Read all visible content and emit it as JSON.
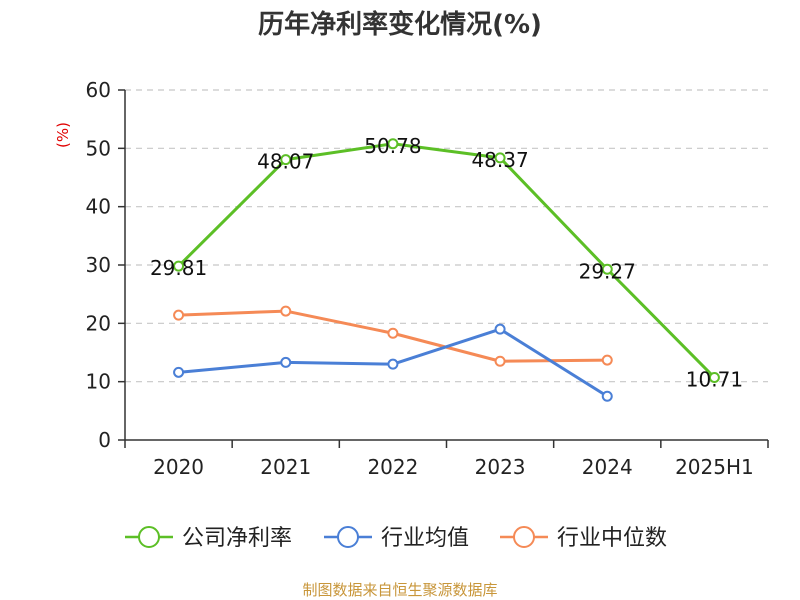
{
  "title": "历年净利率变化情况(%)",
  "unit": "(%)",
  "source": "制图数据来自恒生聚源数据库",
  "chart_data": {
    "type": "line",
    "title": "历年净利率变化情况(%)",
    "ylabel": "(%)",
    "categories": [
      "2020",
      "2021",
      "2022",
      "2023",
      "2024",
      "2025H1"
    ],
    "ylim": [
      0,
      60
    ],
    "yticks": [
      0,
      10,
      20,
      30,
      40,
      50,
      60
    ],
    "grid": true,
    "legend_position": "bottom",
    "series": [
      {
        "name": "公司净利率",
        "color": "#5cbf26",
        "values": [
          29.81,
          48.07,
          50.78,
          48.37,
          29.27,
          10.71
        ],
        "labels": [
          "29.81",
          "48.07",
          "50.78",
          "48.37",
          "29.27",
          "10.71"
        ]
      },
      {
        "name": "行业均值",
        "color": "#4a7fd6",
        "values": [
          11.6,
          13.3,
          13.0,
          19.0,
          7.5,
          null
        ]
      },
      {
        "name": "行业中位数",
        "color": "#f58a56",
        "values": [
          21.4,
          22.1,
          18.3,
          13.5,
          13.7,
          null
        ]
      }
    ]
  }
}
